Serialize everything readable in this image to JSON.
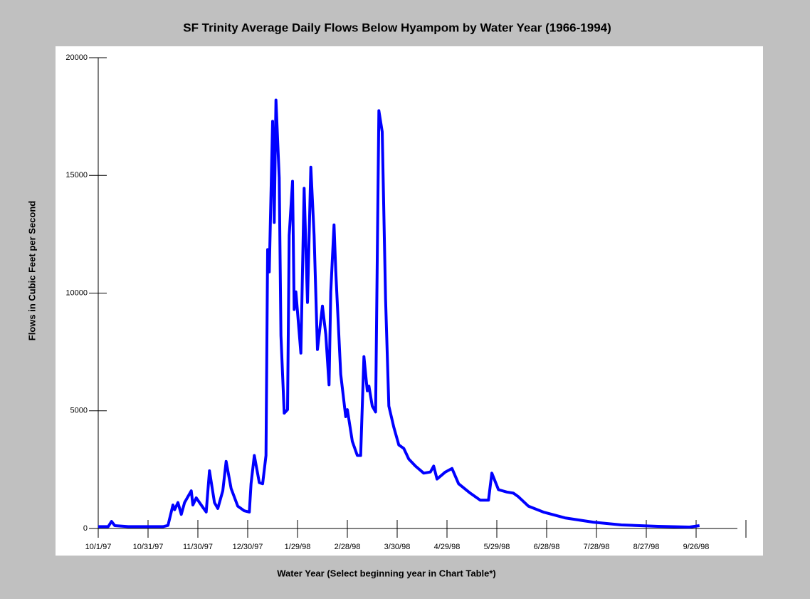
{
  "chart_data": {
    "type": "line",
    "title": "SF Trinity Average Daily Flows Below Hyampom by Water Year (1966-1994)",
    "x_label": "Water Year (Select beginning year in Chart Table*)",
    "y_label": "Flows in Cubic Feet per Second",
    "xlim": [
      "10/1/97",
      "10/26/98"
    ],
    "xticks": [
      "10/1/97",
      "10/31/97",
      "11/30/97",
      "12/30/97",
      "1/29/98",
      "2/28/98",
      "3/30/98",
      "4/29/98",
      "5/29/98",
      "6/28/98",
      "7/28/98",
      "8/27/98",
      "9/26/98"
    ],
    "ylim": [
      0,
      20000
    ],
    "yticks": [
      0,
      5000,
      10000,
      15000,
      20000
    ],
    "x": [
      "10/1/97",
      "10/7/97",
      "10/9/97",
      "10/11/97",
      "10/19/97",
      "11/9/97",
      "11/12/97",
      "11/15/97",
      "11/16/97",
      "11/18/97",
      "11/20/97",
      "11/22/97",
      "11/26/97",
      "11/27/97",
      "11/29/97",
      "12/3/97",
      "12/5/97",
      "12/7/97",
      "12/10/97",
      "12/12/97",
      "12/15/97",
      "12/17/97",
      "12/20/97",
      "12/24/97",
      "12/28/97",
      "12/31/97",
      "1/1/98",
      "1/3/98",
      "1/6/98",
      "1/8/98",
      "1/10/98",
      "1/11/98",
      "1/12/98",
      "1/14/98",
      "1/15/98",
      "1/16/98",
      "1/18/98",
      "1/19/98",
      "1/21/98",
      "1/23/98",
      "1/24/98",
      "1/26/98",
      "1/27/98",
      "1/28/98",
      "1/31/98",
      "2/2/98",
      "2/4/98",
      "2/6/98",
      "2/8/98",
      "2/10/98",
      "2/13/98",
      "2/15/98",
      "2/17/98",
      "2/18/98",
      "2/20/98",
      "2/21/98",
      "2/24/98",
      "2/27/98",
      "2/28/98",
      "3/3/98",
      "3/6/98",
      "3/8/98",
      "3/10/98",
      "3/12/98",
      "3/13/98",
      "3/15/98",
      "3/17/98",
      "3/19/98",
      "3/21/98",
      "3/23/98",
      "3/25/98",
      "3/28/98",
      "3/31/98",
      "4/3/98",
      "4/6/98",
      "4/10/98",
      "4/15/98",
      "4/19/98",
      "4/21/98",
      "4/23/98",
      "4/28/98",
      "5/2/98",
      "5/6/98",
      "5/13/98",
      "5/19/98",
      "5/24/98",
      "5/26/98",
      "5/30/98",
      "6/4/98",
      "6/8/98",
      "6/11/98",
      "6/17/98",
      "6/26/98",
      "7/9/98",
      "7/26/98",
      "8/12/98",
      "9/3/98",
      "9/22/98",
      "9/28/98"
    ],
    "series": [
      {
        "name": "Flow",
        "color": "#0000ff",
        "values": [
          80,
          80,
          300,
          120,
          80,
          80,
          130,
          1000,
          800,
          1100,
          600,
          1100,
          1600,
          1000,
          1300,
          900,
          700,
          2450,
          1100,
          850,
          1600,
          2850,
          1700,
          950,
          750,
          700,
          1900,
          3100,
          1950,
          1900,
          3100,
          11850,
          10900,
          17300,
          13000,
          18200,
          14900,
          8200,
          4900,
          5050,
          12450,
          14750,
          9300,
          10050,
          7450,
          14450,
          9600,
          15350,
          12450,
          7600,
          9450,
          8250,
          6100,
          10050,
          12900,
          10950,
          6550,
          4750,
          5050,
          3700,
          3100,
          3100,
          7300,
          5850,
          6050,
          5200,
          4950,
          17750,
          16850,
          9750,
          5200,
          4300,
          3550,
          3400,
          2950,
          2650,
          2350,
          2400,
          2650,
          2100,
          2400,
          2550,
          1900,
          1500,
          1200,
          1200,
          2350,
          1650,
          1550,
          1500,
          1350,
          950,
          700,
          450,
          270,
          150,
          90,
          60,
          120
        ]
      }
    ]
  }
}
